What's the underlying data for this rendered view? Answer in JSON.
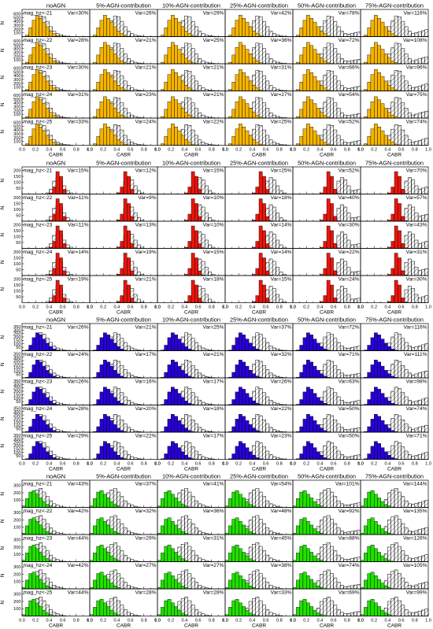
{
  "chart_data": {
    "type": "bar",
    "description_of_bars": "histogram",
    "columns": [
      "noAGN",
      "5%-AGN-contribution",
      "10%-AGN-contribution",
      "25%-AGN-contribution",
      "50%-AGN-contribution",
      "75%-AGN-contribution"
    ],
    "rows": [
      "mag_hz<-21",
      "mag_hz<-22",
      "mag_hz<-23",
      "mag_hz<-24",
      "mag_hz<-25"
    ],
    "xlabel": "CABR",
    "ylabel": "N",
    "xlim": [
      0.0,
      1.0
    ],
    "x_ticks": [
      "0.0",
      "0.2",
      "0.4",
      "0.6",
      "0.8",
      "1.0"
    ],
    "blocks": [
      {
        "color": "#f5b400",
        "row_labels": [
          "mag_hz<-21",
          "mag_hz<-22",
          "mag_hz<-23",
          "mag_hz<-24",
          "mag_hz<-25"
        ],
        "y_ticks": [
          "100",
          "200",
          "300",
          "400",
          "500",
          "600"
        ],
        "ymax": 650,
        "var": [
          [
            "Var=30%",
            "Var=26%",
            "Var=29%",
            "Var=42%",
            "Var=78%",
            "Var=116%"
          ],
          [
            "Var=28%",
            "Var=21%",
            "Var=25%",
            "Var=36%",
            "Var=72%",
            "Var=108%"
          ],
          [
            "Var=30%",
            "Var=21%",
            "Var=21%",
            "Var=31%",
            "Var=66%",
            "Var=96%"
          ],
          [
            "Var=31%",
            "Var=23%",
            "Var=21%",
            "Var=27%",
            "Var=54%",
            "Var=75%"
          ],
          [
            "Var=33%",
            "Var=24%",
            "Var=22%",
            "Var=25%",
            "Var=52%",
            "Var=74%"
          ]
        ],
        "filled": [
          0,
          40,
          230,
          430,
          560,
          480,
          380,
          260,
          150,
          80,
          30,
          10,
          0,
          0,
          0,
          0,
          0,
          0,
          0,
          0
        ],
        "outline": [
          0,
          20,
          120,
          260,
          420,
          540,
          520,
          400,
          260,
          140,
          80,
          40,
          20,
          10,
          5,
          0,
          0,
          0,
          0,
          0
        ],
        "shift": [
          0,
          0.1,
          0.16,
          0.22,
          0.25,
          0.25
        ]
      },
      {
        "color": "#e8160c",
        "row_labels": [
          "mag_hz<-21",
          "mag_hz<-22",
          "mag_hz<-23",
          "mag_hz<-24",
          "mag_hz<-25"
        ],
        "y_ticks": [
          "50",
          "100",
          "150",
          "200"
        ],
        "ymax": 210,
        "var": [
          [
            "Var=15%",
            "Var=12%",
            "Var=15%",
            "Var=25%",
            "Var=52%",
            "Var=70%"
          ],
          [
            "Var=11%",
            "Var=9%",
            "Var=10%",
            "Var=18%",
            "Var=40%",
            "Var=57%"
          ],
          [
            "Var=11%",
            "Var=13%",
            "Var=10%",
            "Var=14%",
            "Var=30%",
            "Var=43%"
          ],
          [
            "Var=14%",
            "Var=19%",
            "Var=15%",
            "Var=14%",
            "Var=22%",
            "Var=31%"
          ],
          [
            "Var=19%",
            "Var=21%",
            "Var=18%",
            "Var=15%",
            "Var=24%",
            "Var=30%"
          ]
        ],
        "filled": [
          0,
          0,
          0,
          0,
          0,
          0,
          0,
          0,
          10,
          60,
          190,
          150,
          40,
          5,
          0,
          0,
          0,
          0,
          0,
          0
        ],
        "outline": [
          0,
          0,
          0,
          0,
          0,
          0,
          0,
          10,
          40,
          110,
          140,
          120,
          70,
          30,
          10,
          0,
          0,
          0,
          0,
          0
        ],
        "shift": [
          0,
          0.05,
          0.08,
          0.14,
          0.2,
          0.22
        ]
      },
      {
        "color": "#2a00d8",
        "row_labels": [
          "mag_hz<-21",
          "mag_hz<-22",
          "mag_hz<-23",
          "mag_hz<-24",
          "mag_hz<-25"
        ],
        "y_ticks": [
          "50",
          "100",
          "150",
          "200",
          "250",
          "300",
          "350"
        ],
        "ymax": 360,
        "var": [
          [
            "Var=26%",
            "Var=21%",
            "Var=25%",
            "Var=37%",
            "Var=72%",
            "Var=116%"
          ],
          [
            "Var=24%",
            "Var=17%",
            "Var=21%",
            "Var=32%",
            "Var=71%",
            "Var=111%"
          ],
          [
            "Var=26%",
            "Var=16%",
            "Var=17%",
            "Var=26%",
            "Var=63%",
            "Var=98%"
          ],
          [
            "Var=28%",
            "Var=20%",
            "Var=18%",
            "Var=22%",
            "Var=50%",
            "Var=74%"
          ],
          [
            "Var=29%",
            "Var=22%",
            "Var=17%",
            "Var=23%",
            "Var=50%",
            "Var=71%"
          ]
        ],
        "filled": [
          0,
          10,
          80,
          190,
          260,
          230,
          170,
          110,
          60,
          25,
          10,
          0,
          0,
          0,
          0,
          0,
          0,
          0,
          0,
          0
        ],
        "outline": [
          0,
          0,
          40,
          110,
          200,
          260,
          240,
          180,
          120,
          70,
          40,
          20,
          10,
          5,
          0,
          0,
          0,
          0,
          0,
          0
        ],
        "shift": [
          0,
          0.1,
          0.16,
          0.22,
          0.25,
          0.25
        ]
      },
      {
        "color": "#22e000",
        "row_labels": [
          "mag_hz<-21",
          "mag_hz<-22",
          "mag_hz<-23",
          "mag_hz<-24",
          "mag_hz<-25"
        ],
        "y_ticks": [
          "100",
          "200",
          "300"
        ],
        "ymax": 340,
        "var": [
          [
            "Var=43%",
            "Var=37%",
            "Var=41%",
            "Var=54%",
            "Var=101%",
            "Var=144%"
          ],
          [
            "Var=42%",
            "Var=32%",
            "Var=36%",
            "Var=48%",
            "Var=92%",
            "Var=135%"
          ],
          [
            "Var=44%",
            "Var=29%",
            "Var=31%",
            "Var=45%",
            "Var=88%",
            "Var=126%"
          ],
          [
            "Var=42%",
            "Var=27%",
            "Var=27%",
            "Var=38%",
            "Var=74%",
            "Var=105%"
          ],
          [
            "Var=44%",
            "Var=28%",
            "Var=28%",
            "Var=33%",
            "Var=69%",
            "Var=99%"
          ]
        ],
        "filled": [
          20,
          120,
          210,
          230,
          180,
          130,
          80,
          40,
          20,
          5,
          0,
          0,
          0,
          0,
          0,
          0,
          0,
          0,
          0,
          0
        ],
        "outline": [
          0,
          40,
          110,
          200,
          240,
          260,
          210,
          150,
          90,
          50,
          30,
          15,
          5,
          0,
          0,
          0,
          0,
          0,
          0,
          0
        ],
        "shift": [
          0,
          0.1,
          0.16,
          0.22,
          0.25,
          0.25
        ]
      }
    ]
  }
}
